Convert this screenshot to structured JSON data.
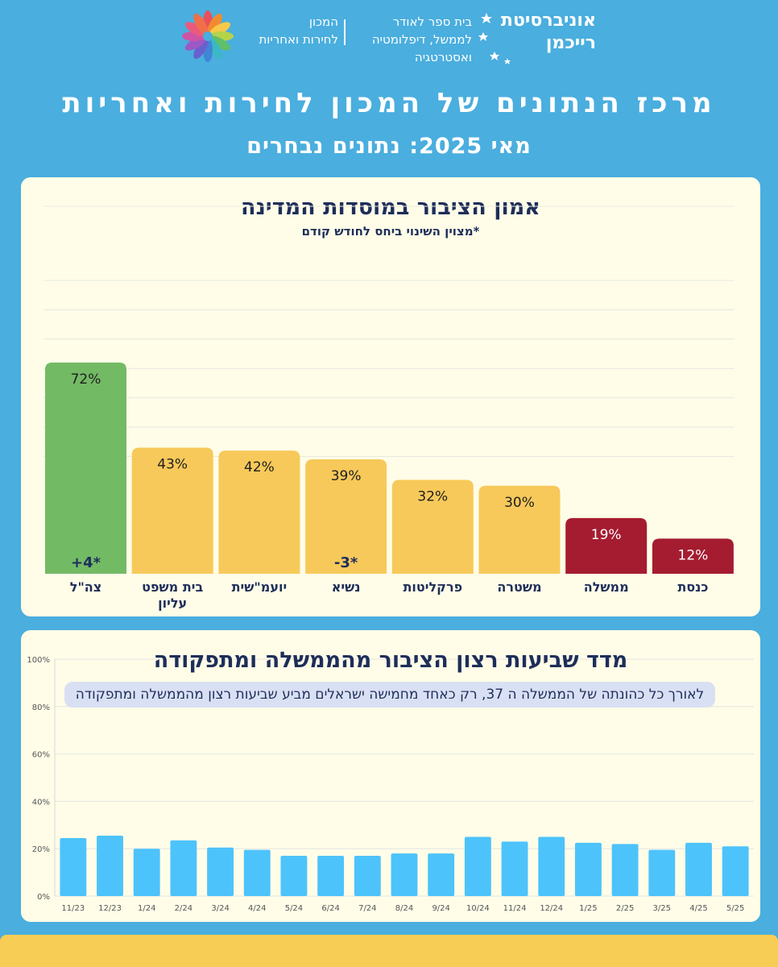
{
  "header": {
    "institute_line1": "המכון",
    "institute_line2": "לחירות ואחריות",
    "school_line1": "בית ספר לאודר",
    "school_line2": "לממשל, דיפלומטיה",
    "school_line3": "ואסטרטגיה",
    "university_line1": "אוניברסיטת",
    "university_line2": "רייכמן"
  },
  "titles": {
    "main": "מרכז הנתונים של המכון לחירות ואחריות",
    "sub": "מאי 2025: נתונים נבחרים"
  },
  "trust_chart": {
    "title": "אמון הציבור במוסדות המדינה",
    "note": "*מצוין השינוי ביחס לחודש קודם"
  },
  "satisfaction_chart": {
    "title": "מדד שביעות רצון הציבור מהממשלה ומתפקודה",
    "callout": "לאורך כל כהונתה של הממשלה ה 37, רק כאחד מחמישה ישראלים מביע שביעות רצון מהממשלה ומתפקודה"
  },
  "colors": {
    "background": "#4aaede",
    "panel": "#fffde8",
    "green": "#73ba65",
    "yellow": "#f7c95a",
    "red": "#a51c30",
    "blue_bar": "#4dc3fb",
    "title_navy": "#1e2e5a"
  },
  "chart_data": [
    {
      "type": "bar",
      "title": "אמון הציבור במוסדות המדינה",
      "categories": [
        "צה\"ל",
        "בית משפט עליון",
        "יועמ\"שית",
        "נשיא",
        "פרקליטות",
        "משטרה",
        "ממשלה",
        "כנסת"
      ],
      "category_lines": [
        [
          "צה\"ל"
        ],
        [
          "בית משפט",
          "עליון"
        ],
        [
          "יועמ\"שית"
        ],
        [
          "נשיא"
        ],
        [
          "פרקליטות"
        ],
        [
          "משטרה"
        ],
        [
          "ממשלה"
        ],
        [
          "כנסת"
        ]
      ],
      "values": [
        72,
        43,
        42,
        39,
        32,
        30,
        19,
        12
      ],
      "value_labels": [
        "72%",
        "43%",
        "42%",
        "39%",
        "32%",
        "30%",
        "19%",
        "12%"
      ],
      "colors": [
        "#73ba65",
        "#f7c95a",
        "#f7c95a",
        "#f7c95a",
        "#f7c95a",
        "#f7c95a",
        "#a51c30",
        "#a51c30"
      ],
      "change_labels": [
        "+4*",
        "",
        "",
        "-3*",
        "",
        "",
        "",
        ""
      ],
      "ylim": [
        0,
        100
      ],
      "grid": true
    },
    {
      "type": "bar",
      "title": "מדד שביעות רצון הציבור מהממשלה ומתפקודה",
      "categories": [
        "11/23",
        "12/23",
        "1/24",
        "2/24",
        "3/24",
        "4/24",
        "5/24",
        "6/24",
        "7/24",
        "8/24",
        "9/24",
        "10/24",
        "11/24",
        "12/24",
        "1/25",
        "2/25",
        "3/25",
        "4/25",
        "5/25"
      ],
      "values": [
        24.5,
        25.5,
        20,
        23.5,
        20.5,
        19.5,
        17,
        17,
        17,
        18,
        18,
        25,
        23,
        25,
        22.5,
        22,
        19.5,
        22.5,
        21
      ],
      "ylim": [
        0,
        100
      ],
      "yticks": [
        "0%",
        "20%",
        "40%",
        "60%",
        "80%",
        "100%"
      ],
      "ytick_values": [
        0,
        20,
        40,
        60,
        80,
        100
      ],
      "grid": true
    }
  ]
}
